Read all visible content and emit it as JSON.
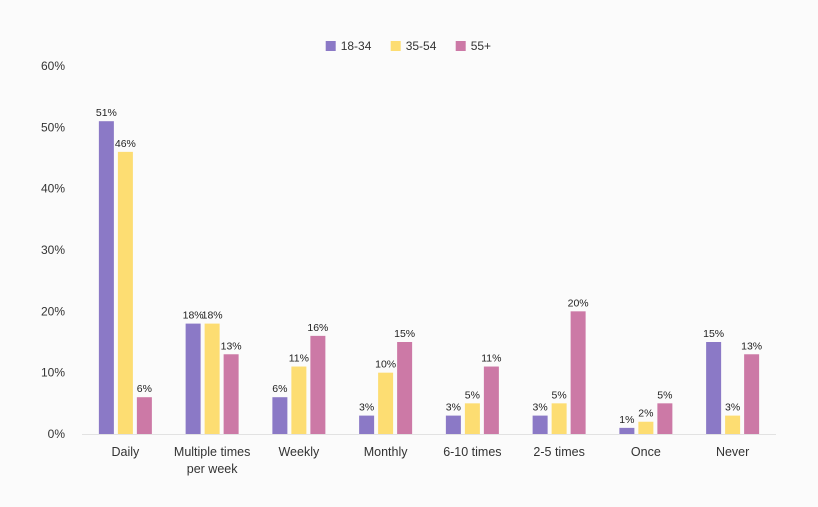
{
  "chart_data": {
    "type": "bar",
    "categories": [
      "Daily",
      "Multiple times per week",
      "Weekly",
      "Monthly",
      "6-10 times",
      "2-5 times",
      "Once",
      "Never"
    ],
    "category_lines": [
      [
        "Daily"
      ],
      [
        "Multiple times",
        "per week"
      ],
      [
        "Weekly"
      ],
      [
        "Monthly"
      ],
      [
        "6-10 times"
      ],
      [
        "2-5 times"
      ],
      [
        "Once"
      ],
      [
        "Never"
      ]
    ],
    "series": [
      {
        "name": "18-34",
        "color": "#8b79c6",
        "values": [
          51,
          18,
          6,
          3,
          3,
          3,
          1,
          15
        ],
        "labels": [
          "51%",
          "18%",
          "6%",
          "3%",
          "3%",
          "3%",
          "1%",
          "15%"
        ]
      },
      {
        "name": "35-54",
        "color": "#fddd72",
        "values": [
          46,
          18,
          11,
          10,
          5,
          5,
          2,
          3
        ],
        "labels": [
          "46%",
          "18%",
          "11%",
          "10%",
          "5%",
          "5%",
          "2%",
          "3%"
        ]
      },
      {
        "name": "55+",
        "color": "#cc79a6",
        "values": [
          6,
          13,
          16,
          15,
          11,
          20,
          5,
          13
        ],
        "labels": [
          "6%",
          "13%",
          "16%",
          "15%",
          "11%",
          "20%",
          "5%",
          "13%"
        ]
      }
    ],
    "yticks": [
      0,
      10,
      20,
      30,
      40,
      50,
      60
    ],
    "ytick_labels": [
      "0%",
      "10%",
      "20%",
      "30%",
      "40%",
      "50%",
      "60%"
    ],
    "ylim": [
      0,
      60
    ],
    "grid": false,
    "legend_position": "top-center"
  }
}
